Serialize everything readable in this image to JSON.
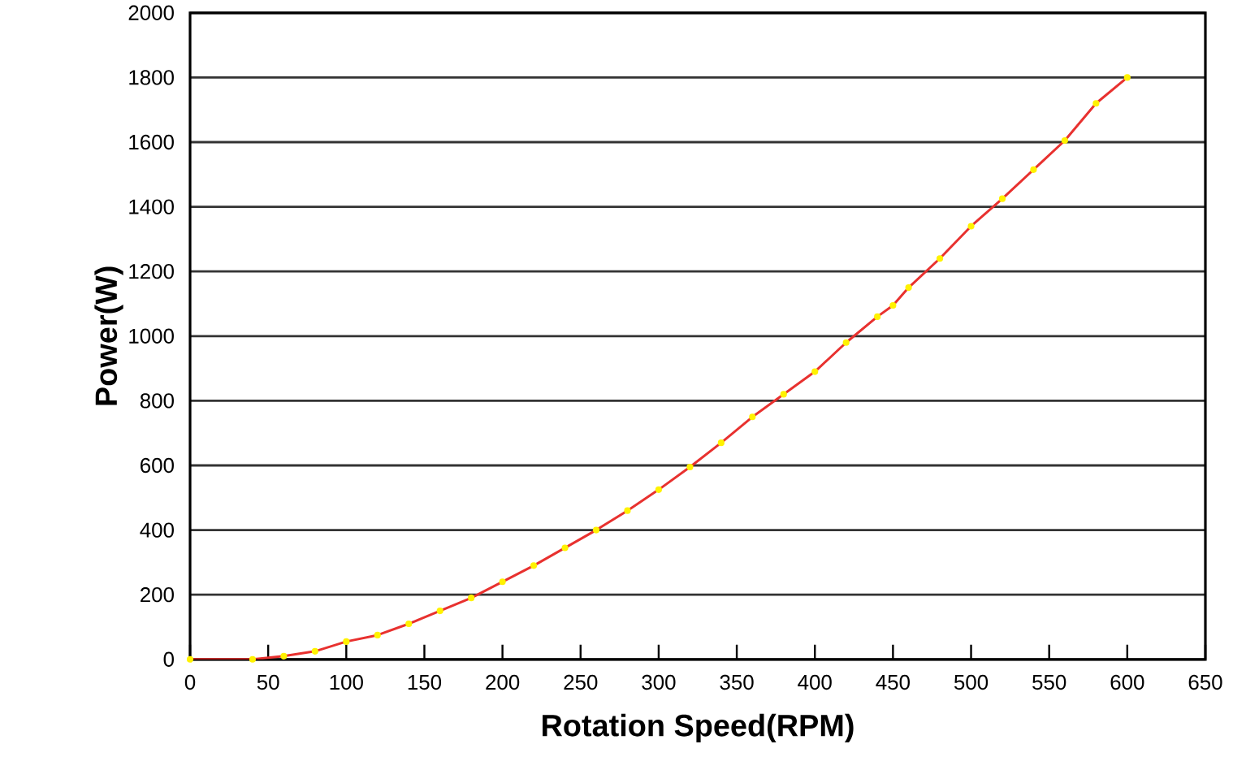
{
  "chart_data": {
    "type": "line",
    "xlabel": "Rotation Speed(RPM)",
    "ylabel": "Power(W)",
    "x": [
      0,
      40,
      60,
      80,
      100,
      120,
      140,
      160,
      180,
      200,
      220,
      240,
      260,
      280,
      300,
      320,
      340,
      360,
      380,
      400,
      420,
      440,
      450,
      460,
      480,
      500,
      520,
      540,
      560,
      580,
      600
    ],
    "series": [
      {
        "color": "#e8312f",
        "values": [
          0,
          0,
          10,
          25,
          55,
          75,
          110,
          150,
          190,
          240,
          290,
          345,
          400,
          460,
          525,
          595,
          670,
          750,
          820,
          890,
          980,
          1060,
          1095,
          1150,
          1240,
          1340,
          1425,
          1515,
          1605,
          1720,
          1800
        ]
      }
    ],
    "xlim": [
      0,
      650
    ],
    "xticks": [
      0,
      50,
      100,
      150,
      200,
      250,
      300,
      350,
      400,
      450,
      500,
      550,
      600,
      650
    ],
    "ylim": [
      0,
      2000
    ],
    "yticks": [
      0,
      200,
      400,
      600,
      800,
      1000,
      1200,
      1400,
      1600,
      1800,
      2000
    ],
    "grid": "y",
    "marker": "circle",
    "line_style": "solid"
  }
}
